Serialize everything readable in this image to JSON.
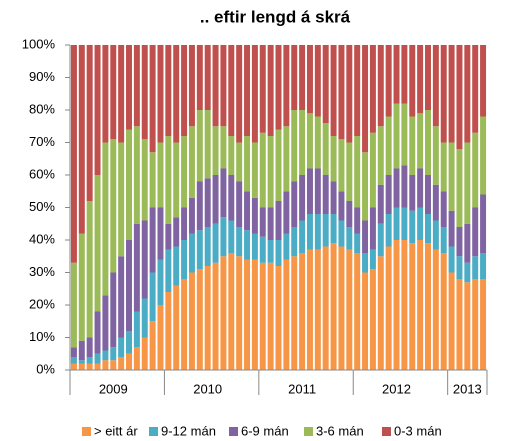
{
  "chart_data": {
    "type": "stacked_bar",
    "title": ".. eftir lengd á skrá",
    "categories": [
      null,
      null,
      null,
      null,
      null,
      "2009",
      null,
      null,
      null,
      null,
      null,
      null,
      null,
      null,
      null,
      null,
      null,
      "2010",
      null,
      null,
      null,
      null,
      null,
      null,
      null,
      null,
      null,
      null,
      null,
      "2011",
      null,
      null,
      null,
      null,
      null,
      null,
      null,
      null,
      null,
      null,
      null,
      "2012",
      null,
      null,
      null,
      null,
      null,
      null,
      null,
      null,
      "2013",
      null,
      null
    ],
    "series": [
      {
        "name": "> eitt ár",
        "color": "#f79646",
        "values": [
          2,
          2,
          2,
          2,
          3,
          3,
          4,
          5,
          7,
          10,
          15,
          20,
          24,
          26,
          28,
          30,
          31,
          32,
          33,
          35,
          36,
          35,
          34,
          34,
          33,
          33,
          32,
          34,
          35,
          36,
          37,
          37,
          38,
          39,
          38,
          37,
          36,
          30,
          31,
          35,
          38,
          40,
          40,
          39,
          40,
          39,
          37,
          36,
          30,
          28,
          27,
          28,
          28
        ]
      },
      {
        "name": "9-12 mán",
        "color": "#4bacc6",
        "values": [
          2,
          1,
          2,
          3,
          3,
          4,
          6,
          7,
          11,
          12,
          15,
          14,
          13,
          12,
          12,
          12,
          12,
          12,
          12,
          12,
          10,
          9,
          9,
          8,
          8,
          7,
          8,
          8,
          9,
          10,
          11,
          11,
          10,
          9,
          8,
          7,
          6,
          6,
          6,
          10,
          10,
          10,
          10,
          10,
          10,
          9,
          9,
          8,
          8,
          7,
          6,
          7,
          8
        ]
      },
      {
        "name": "6-9 mán",
        "color": "#8064a2",
        "values": [
          3,
          6,
          6,
          13,
          17,
          23,
          25,
          28,
          27,
          24,
          20,
          16,
          8,
          9,
          10,
          11,
          15,
          15,
          15,
          15,
          14,
          14,
          12,
          11,
          9,
          10,
          12,
          13,
          14,
          14,
          14,
          14,
          12,
          10,
          9,
          8,
          8,
          10,
          13,
          12,
          12,
          12,
          13,
          11,
          12,
          12,
          11,
          11,
          11,
          9,
          12,
          15,
          18
        ]
      },
      {
        "name": "3-6 mán",
        "color": "#9bbb59",
        "values": [
          26,
          33,
          42,
          42,
          47,
          41,
          35,
          34,
          30,
          25,
          17,
          20,
          27,
          23,
          22,
          22,
          22,
          21,
          15,
          13,
          12,
          12,
          17,
          17,
          23,
          22,
          22,
          20,
          22,
          20,
          17,
          16,
          16,
          14,
          16,
          18,
          22,
          21,
          23,
          18,
          18,
          20,
          19,
          18,
          17,
          20,
          18,
          15,
          21,
          24,
          25,
          23,
          24
        ]
      },
      {
        "name": "0-3 mán",
        "color": "#c0504d",
        "values": [
          67,
          58,
          48,
          40,
          30,
          29,
          30,
          26,
          25,
          29,
          33,
          30,
          28,
          30,
          28,
          25,
          20,
          20,
          25,
          25,
          28,
          30,
          28,
          30,
          27,
          28,
          26,
          25,
          20,
          20,
          21,
          22,
          24,
          28,
          29,
          30,
          28,
          33,
          27,
          25,
          22,
          18,
          18,
          22,
          21,
          20,
          25,
          30,
          30,
          32,
          30,
          27,
          22
        ]
      }
    ],
    "ylim": [
      0,
      100
    ],
    "yticks": [
      {
        "value": 0,
        "label": "0%"
      },
      {
        "value": 10,
        "label": "10%"
      },
      {
        "value": 20,
        "label": "20%"
      },
      {
        "value": 30,
        "label": "30%"
      },
      {
        "value": 40,
        "label": "40%"
      },
      {
        "value": 50,
        "label": "50%"
      },
      {
        "value": 60,
        "label": "60%"
      },
      {
        "value": 70,
        "label": "70%"
      },
      {
        "value": 80,
        "label": "80%"
      },
      {
        "value": 90,
        "label": "90%"
      },
      {
        "value": 100,
        "label": "100%"
      }
    ],
    "legend": "bottom"
  }
}
